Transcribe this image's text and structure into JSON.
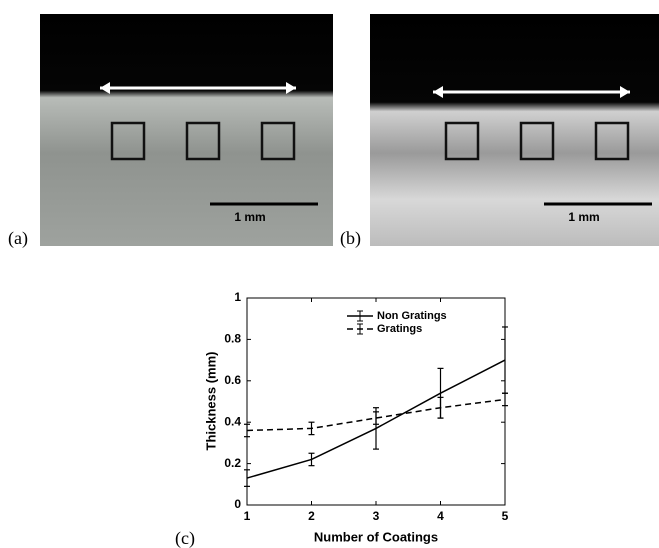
{
  "panels": {
    "a": {
      "label": "(a)",
      "scale": "1 mm"
    },
    "b": {
      "label": "(b)",
      "scale": "1 mm"
    },
    "c": {
      "label": "(c)"
    }
  },
  "chart_data": {
    "type": "line",
    "xlabel": "Number of Coatings",
    "ylabel": "Thickness (mm)",
    "x": [
      1,
      2,
      3,
      4,
      5
    ],
    "series": [
      {
        "name": "Non Gratings",
        "color": "#000000",
        "linestyle": "solid",
        "values": [
          0.13,
          0.22,
          0.37,
          0.54,
          0.7
        ],
        "errors": [
          0.04,
          0.03,
          0.1,
          0.12,
          0.16
        ]
      },
      {
        "name": "Gratings",
        "color": "#000000",
        "linestyle": "dashed",
        "values": [
          0.36,
          0.37,
          0.42,
          0.47,
          0.51
        ],
        "errors": [
          0.03,
          0.03,
          0.03,
          0.05,
          0.03
        ]
      }
    ],
    "xlim": [
      1,
      5
    ],
    "ylim": [
      0,
      1
    ],
    "xticks": [
      1,
      2,
      3,
      4,
      5
    ],
    "yticks": [
      0,
      0.2,
      0.4,
      0.6,
      0.8,
      1
    ],
    "legend": "upper right",
    "grid": false
  }
}
